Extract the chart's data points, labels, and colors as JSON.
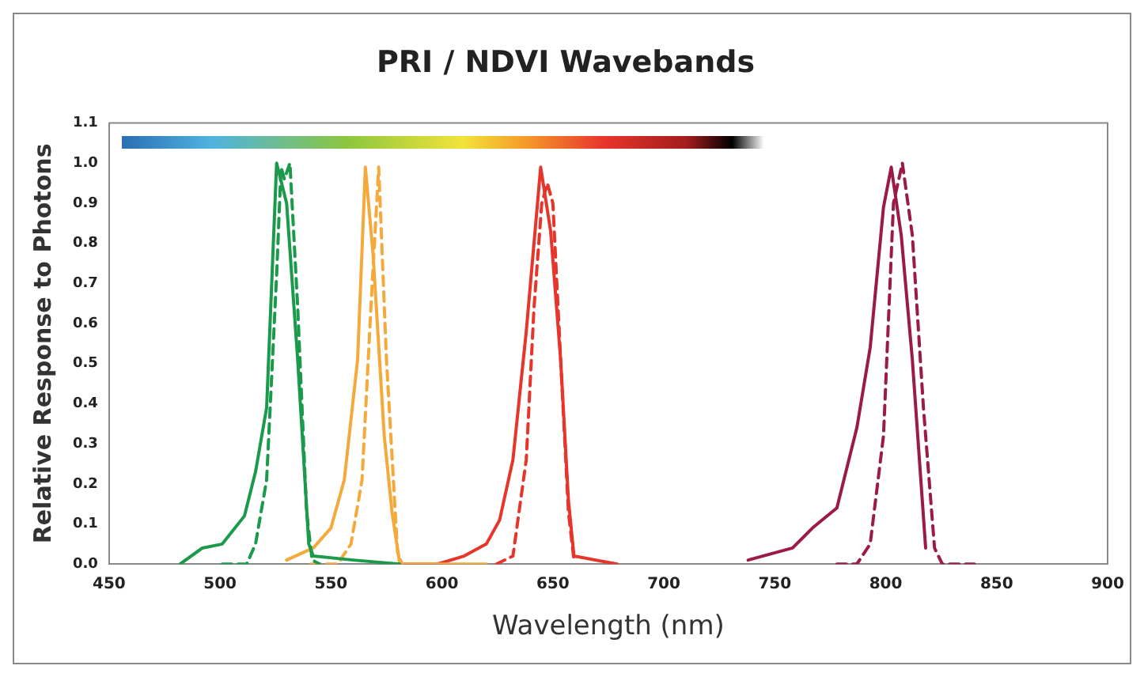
{
  "chart_data": {
    "type": "line",
    "title": "PRI / NDVI Wavebands",
    "xlabel": "Wavelength (nm)",
    "ylabel": "Relative Response to Photons",
    "xlim": [
      450,
      900
    ],
    "xticks": [
      450,
      500,
      550,
      600,
      650,
      700,
      750,
      800,
      850,
      900
    ],
    "ylim": [
      0,
      1.1
    ],
    "yticks": [
      {
        "value": 0,
        "label": "0.0"
      },
      {
        "value": 0.1,
        "label": "0.1"
      },
      {
        "value": 0.2,
        "label": "0.2"
      },
      {
        "value": 0.3,
        "label": "0.3"
      },
      {
        "value": 0.4,
        "label": "0.4"
      },
      {
        "value": 0.5,
        "label": "0.5"
      },
      {
        "value": 0.6,
        "label": "0.6"
      },
      {
        "value": 0.7,
        "label": "0.7"
      },
      {
        "value": 0.8,
        "label": "0.8"
      },
      {
        "value": 0.9,
        "label": "0.9"
      },
      {
        "value": 1,
        "label": "1.0"
      },
      {
        "value": 1.1,
        "label": "1.1"
      }
    ],
    "grid": false,
    "legend": false,
    "marker": "none",
    "series": [
      {
        "color": "#1a9a4a",
        "line_style": "solid",
        "x": [
          482,
          492,
          501,
          511,
          516,
          521,
          525.5,
          530,
          535,
          540,
          542,
          560,
          581
        ],
        "values": [
          0,
          0.04,
          0.05,
          0.12,
          0.23,
          0.39,
          1.0,
          0.9,
          0.51,
          0.05,
          0.02,
          0.01,
          0
        ]
      },
      {
        "color": "#1a9a4a",
        "line_style": "dashed",
        "x": [
          501,
          512,
          516,
          521,
          525.5,
          527.5,
          529,
          531.5,
          535,
          539,
          541.5,
          545
        ],
        "values": [
          0,
          0,
          0.05,
          0.21,
          0.72,
          0.99,
          0.96,
          1.0,
          0.64,
          0.13,
          0.01,
          0
        ]
      },
      {
        "color": "#f6a93b",
        "line_style": "solid",
        "x": [
          530,
          542,
          550,
          556,
          562,
          565.5,
          569,
          574,
          577.5,
          581,
          620
        ],
        "values": [
          0.01,
          0.04,
          0.09,
          0.21,
          0.51,
          0.99,
          0.77,
          0.32,
          0.13,
          0,
          0
        ]
      },
      {
        "color": "#f6a93b",
        "line_style": "dashed",
        "x": [
          541,
          553,
          559,
          564,
          568,
          571.5,
          575,
          580,
          582
        ],
        "values": [
          0,
          0,
          0.05,
          0.21,
          0.64,
          0.99,
          0.51,
          0.03,
          0
        ]
      },
      {
        "color": "#e8352b",
        "line_style": "solid",
        "x": [
          581,
          598,
          610,
          620,
          626,
          632,
          638,
          644.5,
          649,
          653.5,
          657,
          659.5,
          679
        ],
        "values": [
          0,
          0,
          0.02,
          0.05,
          0.11,
          0.26,
          0.58,
          0.99,
          0.83,
          0.51,
          0.16,
          0.02,
          0
        ]
      },
      {
        "color": "#e8352b",
        "line_style": "dashed",
        "x": [
          624.5,
          632,
          638,
          641.5,
          645,
          647.5,
          650,
          653.5,
          657,
          659.5
        ],
        "values": [
          0,
          0.02,
          0.26,
          0.64,
          0.9,
          0.95,
          0.9,
          0.51,
          0.13,
          0.01
        ]
      },
      {
        "color": "#9b1b46",
        "line_style": "solid",
        "x": [
          738,
          758,
          767,
          778,
          787,
          793,
          799,
          802.5,
          807,
          812,
          818
        ],
        "values": [
          0.01,
          0.04,
          0.09,
          0.14,
          0.34,
          0.54,
          0.89,
          0.99,
          0.82,
          0.51,
          0.04
        ]
      },
      {
        "color": "#9b1b46",
        "line_style": "dashed",
        "x": [
          778,
          787,
          793,
          799,
          803.5,
          807.5,
          812,
          817,
          822,
          825.5,
          840
        ],
        "values": [
          0,
          0,
          0.05,
          0.32,
          0.9,
          1.0,
          0.82,
          0.39,
          0.04,
          0,
          0
        ]
      }
    ]
  }
}
